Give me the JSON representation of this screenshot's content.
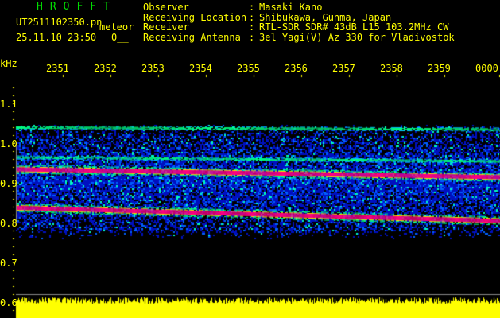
{
  "header": {
    "brand": "HROFFT",
    "filename": "UT2511102350.pn",
    "mode": "meteor",
    "datetime": "25.11.10 23:50",
    "count": "0__",
    "info": [
      {
        "label": "Observer",
        "value": "Masaki Kano"
      },
      {
        "label": "Receiving Location",
        "value": "Shibukawa, Gunma, Japan"
      },
      {
        "label": "Receiver",
        "value": "RTL-SDR SDR# 43dB L15 103.2MHz CW"
      },
      {
        "label": "Receiving Antenna",
        "value": "3el Yagi(V) Az 330 for Vladivostok"
      }
    ]
  },
  "axes": {
    "y_unit": "kHz",
    "y_ticks": [
      "1.1",
      "1.0",
      "0.9",
      "0.8",
      "0.7",
      "0.6"
    ],
    "x_ticks": [
      "2351",
      "2352",
      "2353",
      "2354",
      "2355",
      "2356",
      "2357",
      "2358",
      "2359",
      "0000"
    ]
  },
  "spectrogram": {
    "colors": {
      "noise": "#0000ff",
      "mid": "#00ff80",
      "strong": "#ff0080",
      "level": "#ffff00"
    },
    "freq_range_khz": [
      0.6,
      1.1
    ],
    "signal_band_khz": [
      0.76,
      1.05
    ],
    "traces_khz": [
      {
        "start": 0.935,
        "end": 0.915,
        "level": "strong"
      },
      {
        "start": 0.838,
        "end": 0.805,
        "level": "strong"
      },
      {
        "start": 0.965,
        "end": 0.955,
        "level": "mid"
      },
      {
        "start": 1.04,
        "end": 1.035,
        "level": "mid"
      }
    ]
  }
}
